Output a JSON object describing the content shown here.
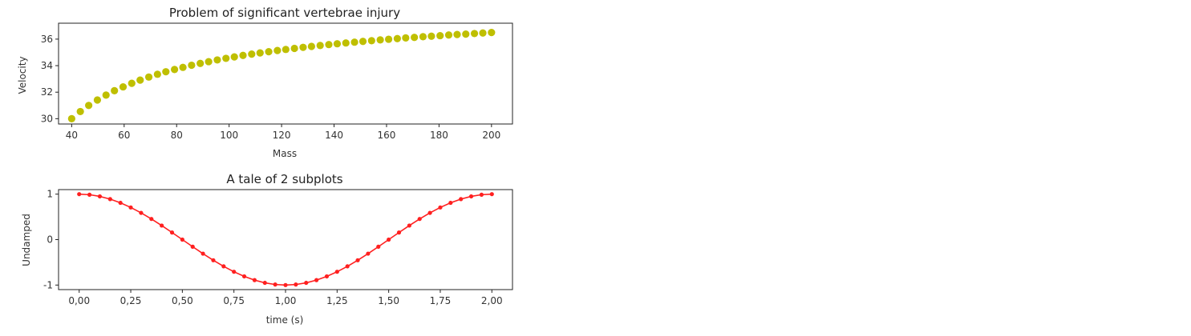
{
  "chart_data": [
    {
      "type": "scatter",
      "title": "Problem of significant vertebrae injury",
      "xlabel": "Mass",
      "ylabel": "Velocity",
      "xlim": [
        35,
        208
      ],
      "ylim": [
        29.6,
        37.2
      ],
      "xticks": [
        40,
        60,
        80,
        100,
        120,
        140,
        160,
        180,
        200
      ],
      "xtick_labels": [
        "40",
        "60",
        "80",
        "100",
        "120",
        "140",
        "160",
        "180",
        "200"
      ],
      "yticks": [
        30,
        32,
        34,
        36
      ],
      "ytick_labels": [
        "30",
        "32",
        "34",
        "36"
      ],
      "color": "#bfbf00",
      "grid": false,
      "series": [
        {
          "x": [
            40,
            43.3,
            46.5,
            49.8,
            53.1,
            56.3,
            59.6,
            62.9,
            66.1,
            69.4,
            72.7,
            75.9,
            79.2,
            82.4,
            85.7,
            89.0,
            92.2,
            95.5,
            98.8,
            102.0,
            105.3,
            108.6,
            111.8,
            115.1,
            118.4,
            121.6,
            124.9,
            128.2,
            131.4,
            134.7,
            138.0,
            141.2,
            144.5,
            147.8,
            151.0,
            154.3,
            157.6,
            160.8,
            164.1,
            167.3,
            170.6,
            173.9,
            177.1,
            180.4,
            183.7,
            186.9,
            190.2,
            193.5,
            196.7,
            200
          ],
          "y": [
            30.0,
            30.54,
            31.0,
            31.41,
            31.78,
            32.11,
            32.4,
            32.67,
            32.91,
            33.14,
            33.35,
            33.54,
            33.71,
            33.87,
            34.03,
            34.17,
            34.3,
            34.43,
            34.55,
            34.66,
            34.77,
            34.87,
            34.96,
            35.05,
            35.14,
            35.22,
            35.3,
            35.38,
            35.45,
            35.52,
            35.59,
            35.65,
            35.71,
            35.77,
            35.83,
            35.88,
            35.94,
            35.99,
            36.04,
            36.09,
            36.13,
            36.18,
            36.22,
            36.26,
            36.31,
            36.35,
            36.38,
            36.42,
            36.46,
            36.5
          ]
        }
      ]
    },
    {
      "type": "line",
      "title": "A tale of 2 subplots",
      "xlabel": "time (s)",
      "ylabel": "Undamped",
      "xlim": [
        -0.1,
        2.1
      ],
      "ylim": [
        -1.1,
        1.1
      ],
      "xticks": [
        0,
        0.25,
        0.5,
        0.75,
        1.0,
        1.25,
        1.5,
        1.75,
        2.0
      ],
      "xtick_labels": [
        "0,00",
        "0,25",
        "0,50",
        "0,75",
        "1,00",
        "1,25",
        "1,50",
        "1,75",
        "2,00"
      ],
      "yticks": [
        -1,
        0,
        1
      ],
      "ytick_labels": [
        "-1",
        "0",
        "1"
      ],
      "color": "#ff2020",
      "marker": "dot",
      "grid": false,
      "series": [
        {
          "x": [
            0.0,
            0.05,
            0.1,
            0.15,
            0.2,
            0.25,
            0.3,
            0.35,
            0.4,
            0.45,
            0.5,
            0.55,
            0.6,
            0.65,
            0.7,
            0.75,
            0.8,
            0.85,
            0.9,
            0.95,
            1.0,
            1.05,
            1.1,
            1.15,
            1.2,
            1.25,
            1.3,
            1.35,
            1.4,
            1.45,
            1.5,
            1.55,
            1.6,
            1.65,
            1.7,
            1.75,
            1.8,
            1.85,
            1.9,
            1.95,
            2.0
          ],
          "y": [
            1.0,
            0.988,
            0.951,
            0.891,
            0.809,
            0.707,
            0.588,
            0.454,
            0.309,
            0.156,
            0.0,
            -0.156,
            -0.309,
            -0.454,
            -0.588,
            -0.707,
            -0.809,
            -0.891,
            -0.951,
            -0.988,
            -1.0,
            -0.988,
            -0.951,
            -0.891,
            -0.809,
            -0.707,
            -0.588,
            -0.454,
            -0.309,
            -0.156,
            0.0,
            0.156,
            0.309,
            0.454,
            0.588,
            0.707,
            0.809,
            0.891,
            0.951,
            0.988,
            1.0
          ]
        }
      ]
    }
  ]
}
